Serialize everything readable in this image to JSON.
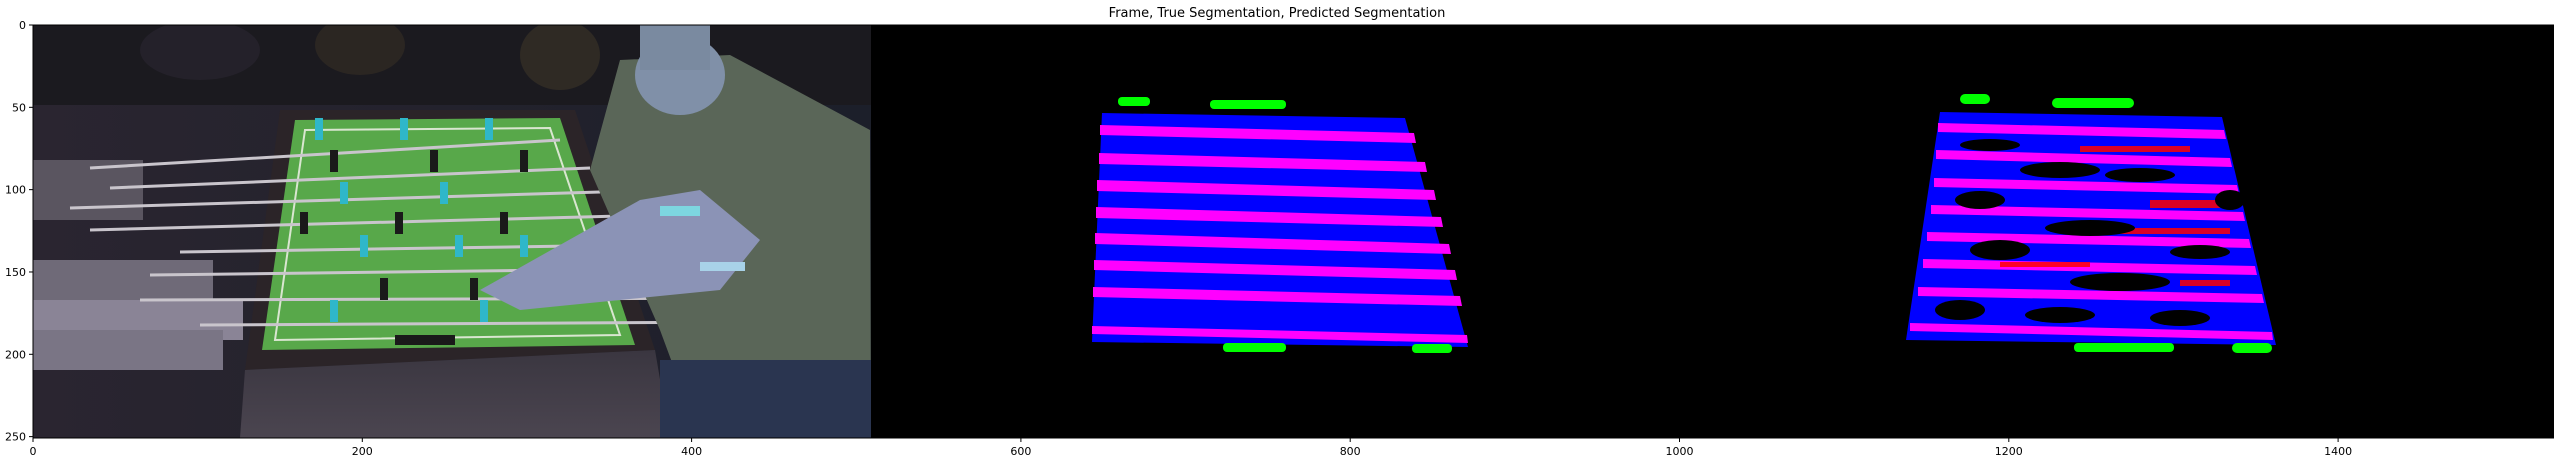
{
  "title": "Frame, True Segmentation, Predicted Segmentation",
  "x_ticks": [
    "0",
    "200",
    "400",
    "600",
    "800",
    "1000",
    "1200",
    "1400"
  ],
  "y_ticks": [
    "0",
    "50",
    "100",
    "150",
    "200",
    "250"
  ],
  "colors": {
    "rod": "#ff00ff",
    "table": "#0000ff",
    "goal": "#00ff00",
    "error": "#ff0000",
    "background": "#000000"
  },
  "panels": [
    {
      "name": "frame"
    },
    {
      "name": "true-segmentation"
    },
    {
      "name": "predicted-segmentation"
    }
  ]
}
